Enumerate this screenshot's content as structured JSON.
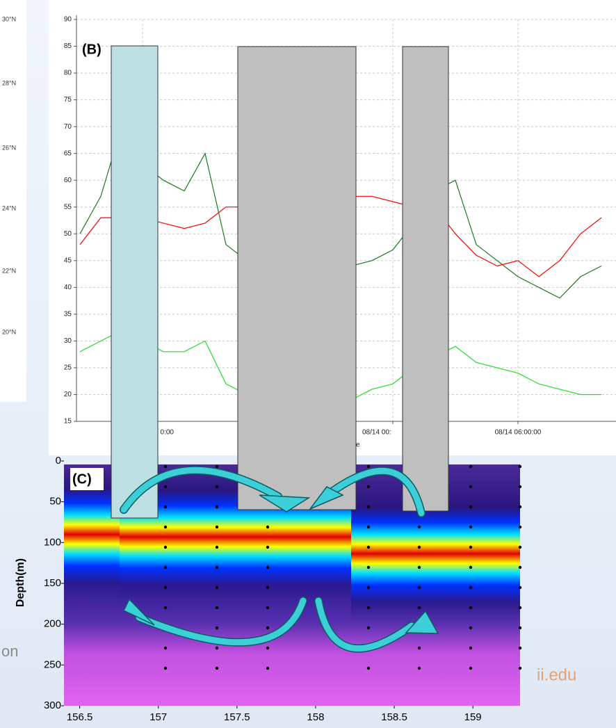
{
  "panel_a": {
    "lat_labels": [
      "30°N",
      "28°N",
      "26°N",
      "24°N",
      "22°N",
      "20°N"
    ]
  },
  "background_text": [
    "on",
    "ii.edu"
  ],
  "chart_data": [
    {
      "type": "line",
      "label": "(B)",
      "xlabel": "e",
      "x": [
        "08/13 09:00:00",
        "08/13 10:00:00",
        "08/13 11:00:00",
        "08/13 12:00:00",
        "08/13 13:00:00",
        "08/13 14:00:00",
        "08/13 15:00:00",
        "08/13 16:00:00",
        "08/13 17:00:00",
        "08/13 18:00:00",
        "08/13 19:00:00",
        "08/13 20:00:00",
        "08/13 21:00:00",
        "08/13 22:00:00",
        "08/13 23:00:00",
        "08/14 00:00:00",
        "08/14 01:00:00",
        "08/14 02:00:00",
        "08/14 03:00:00",
        "08/14 04:00:00",
        "08/14 05:00:00",
        "08/14 06:00:00",
        "08/14 07:00:00",
        "08/14 08:00:00",
        "08/14 09:00:00",
        "08/14 10:00:00"
      ],
      "xlim": [
        "08/13 08:50:00",
        "08/14 10:42:00"
      ],
      "xticks": [
        {
          "value": "08/13 12:00:00",
          "label": "0:00"
        },
        {
          "value": "08/14 00:00:00",
          "label": "08/14 00:"
        },
        {
          "value": "08/14 06:00:00",
          "label": "08/14 06:00:00"
        }
      ],
      "ylim": [
        15,
        90
      ],
      "yticks": [
        15,
        20,
        25,
        30,
        35,
        40,
        45,
        50,
        55,
        60,
        65,
        70,
        75,
        80,
        85,
        90
      ],
      "grid": true,
      "series": [
        {
          "color": "#1a7a1a",
          "values": [
            50,
            57,
            70,
            63,
            60,
            58,
            65,
            48,
            45,
            44,
            44,
            44,
            44,
            44,
            45,
            47,
            52,
            58,
            60,
            48,
            45,
            42,
            40,
            38,
            42,
            44
          ]
        },
        {
          "color": "#ff0000",
          "values": [
            48,
            53,
            53,
            53,
            52,
            51,
            52,
            55,
            55,
            56,
            57,
            57,
            57,
            57,
            57,
            56,
            55,
            55,
            50,
            46,
            44,
            45,
            42,
            45,
            50,
            53
          ]
        },
        {
          "color": "#22dd22",
          "values": [
            28,
            30,
            32,
            30,
            28,
            28,
            30,
            22,
            20,
            19,
            19,
            19,
            19,
            19,
            21,
            22,
            25,
            27,
            29,
            26,
            25,
            24,
            22,
            21,
            20,
            20
          ]
        }
      ]
    },
    {
      "type": "contour",
      "label": "(C)",
      "ylabel": "Depth(m)",
      "y_inverted": true,
      "xlim": [
        156.4,
        159.3
      ],
      "xticks": [
        156.5,
        157,
        157.5,
        158,
        158.5,
        159
      ],
      "ylim": [
        0,
        300
      ],
      "yticks": [
        0,
        50,
        100,
        150,
        200,
        250,
        300
      ]
    }
  ]
}
